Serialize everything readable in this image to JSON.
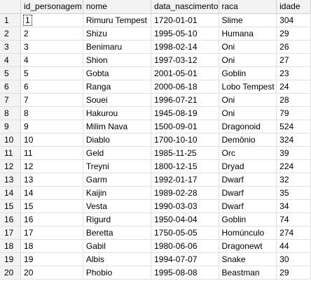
{
  "columns": [
    "",
    "id_personagem",
    "nome",
    "data_nascimento",
    "raca",
    "idade"
  ],
  "rows": [
    {
      "n": "1",
      "id": "1",
      "nome": "Rimuru Tempest",
      "data": "1720-01-01",
      "raca": "Slime",
      "idade": "304"
    },
    {
      "n": "2",
      "id": "2",
      "nome": "Shizu",
      "data": "1995-05-10",
      "raca": "Humana",
      "idade": "29"
    },
    {
      "n": "3",
      "id": "3",
      "nome": "Benimaru",
      "data": "1998-02-14",
      "raca": "Oni",
      "idade": "26"
    },
    {
      "n": "4",
      "id": "4",
      "nome": "Shion",
      "data": "1997-03-12",
      "raca": "Oni",
      "idade": "27"
    },
    {
      "n": "5",
      "id": "5",
      "nome": "Gobta",
      "data": "2001-05-01",
      "raca": "Goblin",
      "idade": "23"
    },
    {
      "n": "6",
      "id": "6",
      "nome": "Ranga",
      "data": "2000-06-18",
      "raca": "Lobo Tempest",
      "idade": "24"
    },
    {
      "n": "7",
      "id": "7",
      "nome": "Souei",
      "data": "1996-07-21",
      "raca": "Oni",
      "idade": "28"
    },
    {
      "n": "8",
      "id": "8",
      "nome": "Hakurou",
      "data": "1945-08-19",
      "raca": "Oni",
      "idade": "79"
    },
    {
      "n": "9",
      "id": "9",
      "nome": "Milim Nava",
      "data": "1500-09-01",
      "raca": "Dragonoid",
      "idade": "524"
    },
    {
      "n": "10",
      "id": "10",
      "nome": "Diablo",
      "data": "1700-10-10",
      "raca": "Demônio",
      "idade": "324"
    },
    {
      "n": "11",
      "id": "11",
      "nome": "Geld",
      "data": "1985-11-25",
      "raca": "Orc",
      "idade": "39"
    },
    {
      "n": "12",
      "id": "12",
      "nome": "Treyni",
      "data": "1800-12-15",
      "raca": "Dryad",
      "idade": "224"
    },
    {
      "n": "13",
      "id": "13",
      "nome": "Garm",
      "data": "1992-01-17",
      "raca": "Dwarf",
      "idade": "32"
    },
    {
      "n": "14",
      "id": "14",
      "nome": "Kaijin",
      "data": "1989-02-28",
      "raca": "Dwarf",
      "idade": "35"
    },
    {
      "n": "15",
      "id": "15",
      "nome": "Vesta",
      "data": "1990-03-03",
      "raca": "Dwarf",
      "idade": "34"
    },
    {
      "n": "16",
      "id": "16",
      "nome": "Rigurd",
      "data": "1950-04-04",
      "raca": "Goblin",
      "idade": "74"
    },
    {
      "n": "17",
      "id": "17",
      "nome": "Beretta",
      "data": "1750-05-05",
      "raca": "Homúnculo",
      "idade": "274"
    },
    {
      "n": "18",
      "id": "18",
      "nome": "Gabil",
      "data": "1980-06-06",
      "raca": "Dragonewt",
      "idade": "44"
    },
    {
      "n": "19",
      "id": "19",
      "nome": "Albis",
      "data": "1994-07-07",
      "raca": "Snake",
      "idade": "30"
    },
    {
      "n": "20",
      "id": "20",
      "nome": "Phobio",
      "data": "1995-08-08",
      "raca": "Beastman",
      "idade": "29"
    }
  ]
}
